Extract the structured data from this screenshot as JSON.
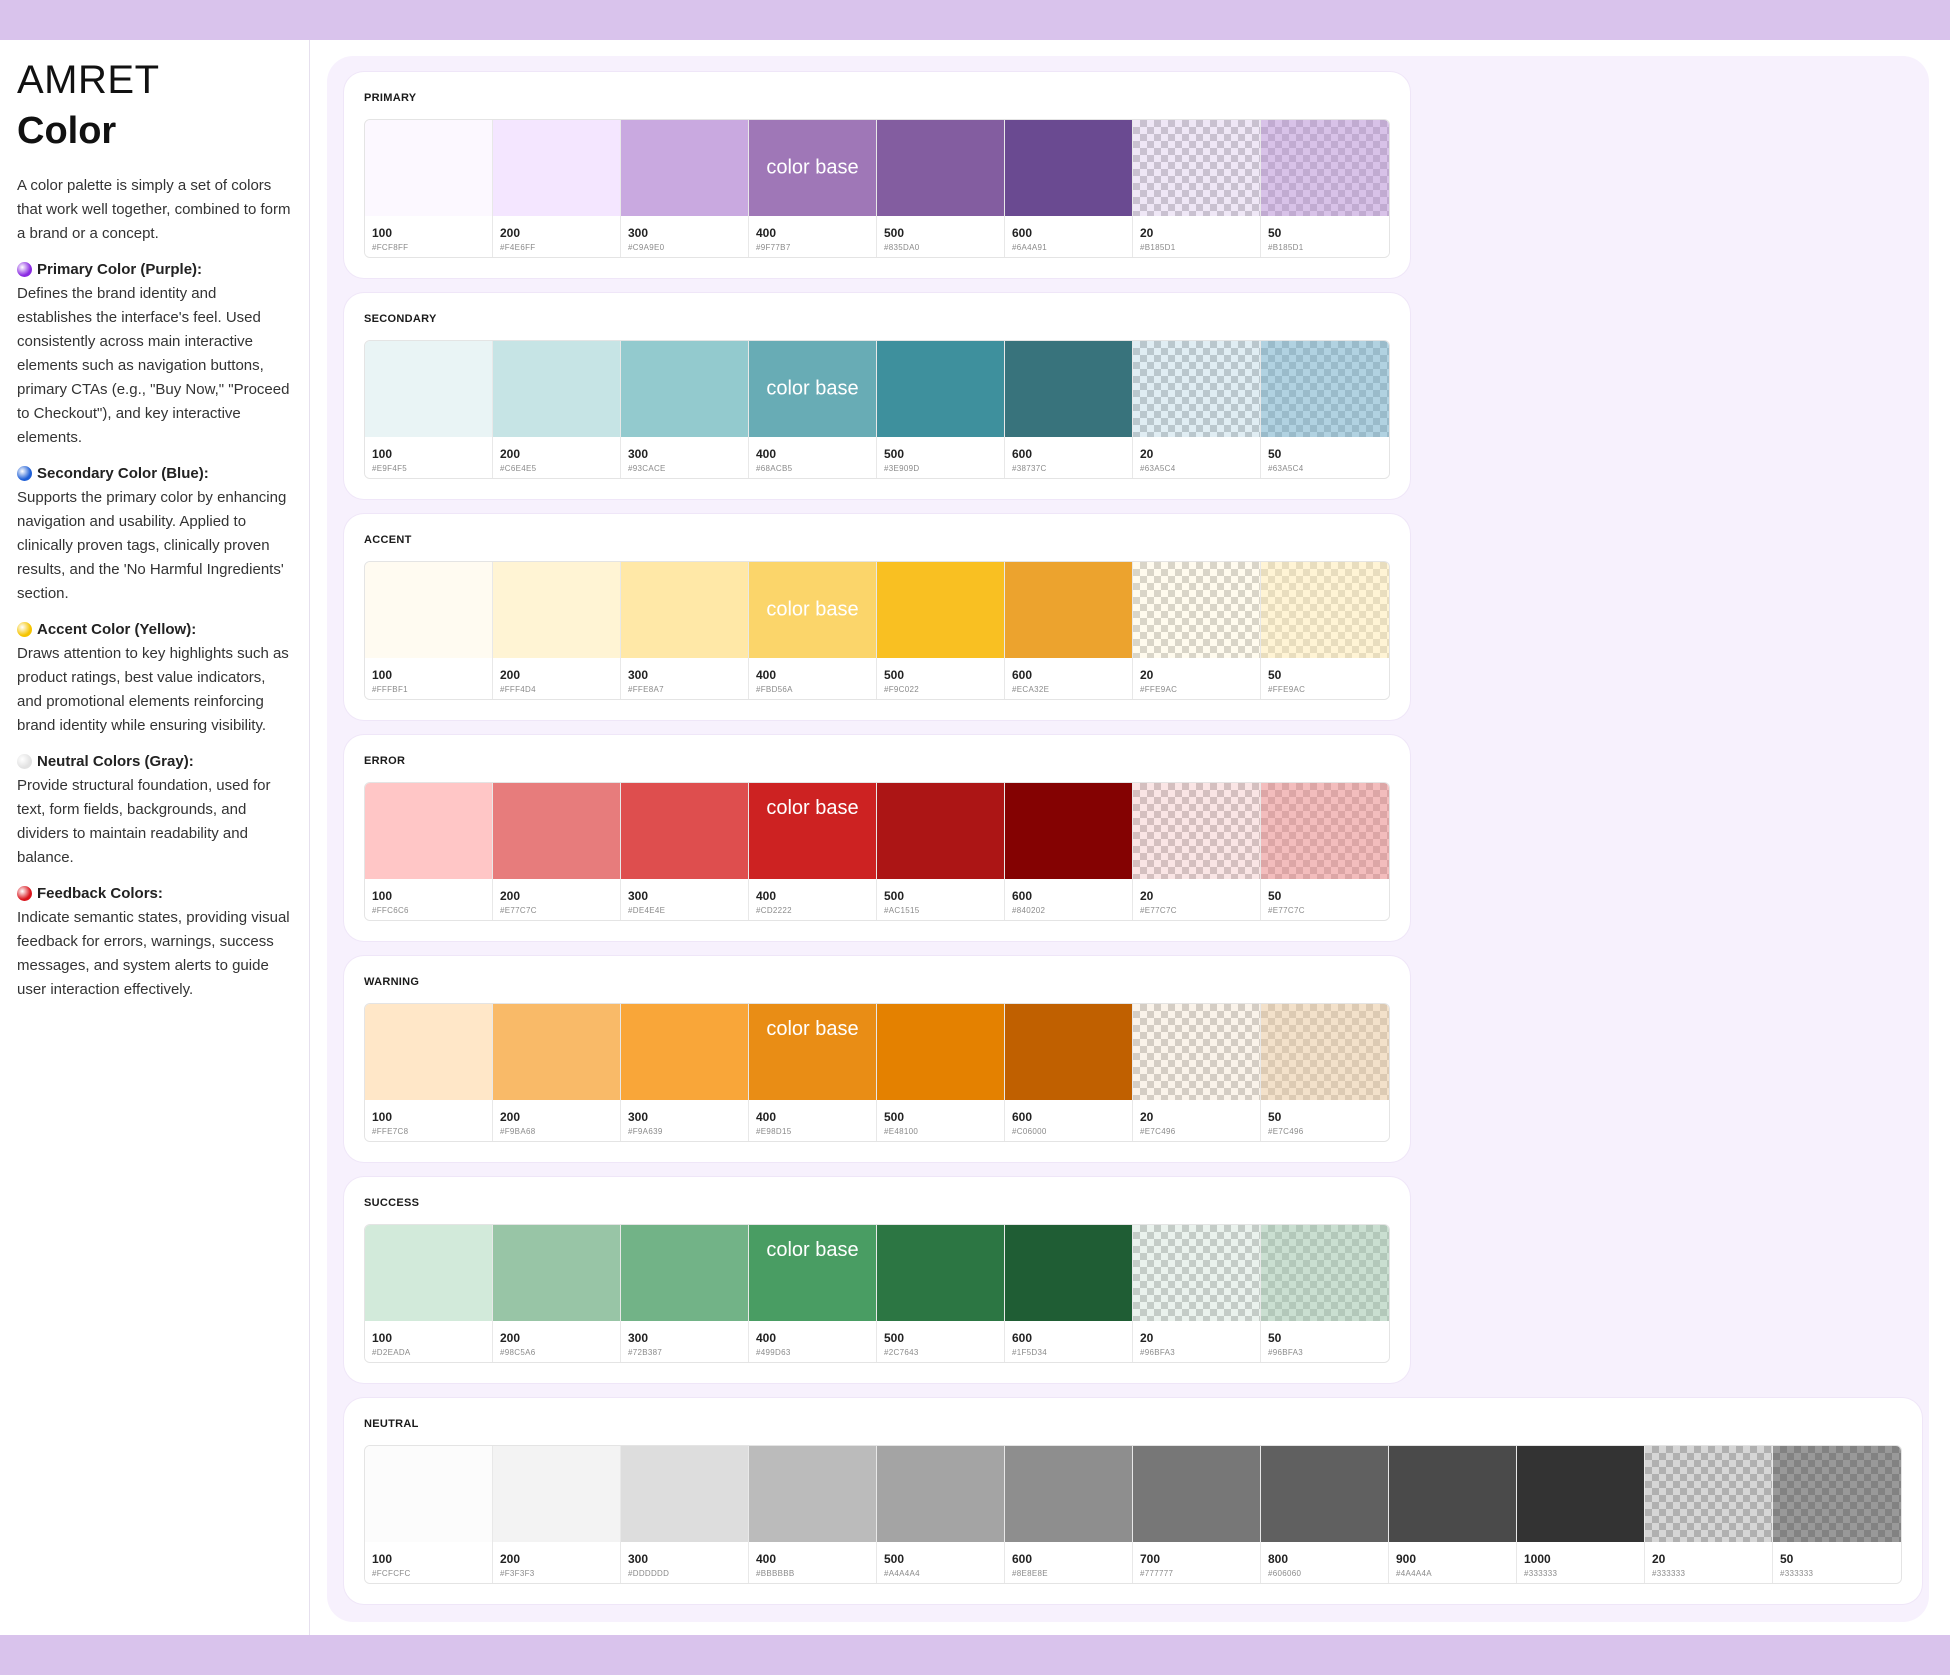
{
  "sidebar": {
    "brand": "AMRET",
    "title": "Color",
    "intro": "A color palette is simply a set of colors that work well together, combined to form a brand or a concept.",
    "sections": [
      {
        "heading": "Primary Color (Purple):",
        "dot": "#8a2be2",
        "body": "Defines the brand identity and establishes the interface's feel. Used consistently across main interactive elements such as navigation buttons, primary CTAs (e.g., \"Buy Now,\" \"Proceed to Checkout\"), and key interactive elements."
      },
      {
        "heading": "Secondary Color (Blue):",
        "dot": "#1f5fd6",
        "body": "Supports the primary color by enhancing navigation and usability. Applied to clinically proven tags, clinically proven results, and the 'No Harmful Ingredients' section."
      },
      {
        "heading": "Accent Color (Yellow):",
        "dot": "#f5c400",
        "body": "Draws attention to key highlights such as product ratings, best value indicators, and promotional elements reinforcing brand identity while ensuring visibility."
      },
      {
        "heading": "Neutral Colors (Gray):",
        "dot": "#e2e2e2",
        "body": "Provide structural foundation, used for text, form fields, backgrounds, and dividers to maintain readability and balance."
      },
      {
        "heading": "Feedback Colors:",
        "dot": "#d9141c",
        "body": "Indicate semantic states, providing visual feedback for errors, warnings, success messages, and system alerts to guide user interaction effectively."
      }
    ]
  },
  "palettes": [
    {
      "label": "PRIMARY",
      "base_text": "color base",
      "base_index": 3,
      "base_pos": "mid",
      "swatches": [
        {
          "step": "100",
          "hex": "#FCF8FF",
          "color": "#FCF8FF"
        },
        {
          "step": "200",
          "hex": "#F4E6FF",
          "color": "#F4E6FF"
        },
        {
          "step": "300",
          "hex": "#C9A9E0",
          "color": "#C9A9E0"
        },
        {
          "step": "400",
          "hex": "#9F77B7",
          "color": "#9F77B7"
        },
        {
          "step": "500",
          "hex": "#835DA0",
          "color": "#835DA0"
        },
        {
          "step": "600",
          "hex": "#6A4A91",
          "color": "#6A4A91"
        },
        {
          "step": "20",
          "hex": "#B185D1",
          "color": "#B185D1",
          "alpha": 0.2
        },
        {
          "step": "50",
          "hex": "#B185D1",
          "color": "#B185D1",
          "alpha": 0.5
        }
      ]
    },
    {
      "label": "SECONDARY",
      "base_text": "color base",
      "base_index": 3,
      "base_pos": "mid",
      "swatches": [
        {
          "step": "100",
          "hex": "#E9F4F5",
          "color": "#E9F4F5"
        },
        {
          "step": "200",
          "hex": "#C6E4E5",
          "color": "#C6E4E5"
        },
        {
          "step": "300",
          "hex": "#93CACE",
          "color": "#93CACE"
        },
        {
          "step": "400",
          "hex": "#68ACB5",
          "color": "#68ACB5"
        },
        {
          "step": "500",
          "hex": "#3E909D",
          "color": "#3E909D"
        },
        {
          "step": "600",
          "hex": "#38737C",
          "color": "#38737C"
        },
        {
          "step": "20",
          "hex": "#63A5C4",
          "color": "#63A5C4",
          "alpha": 0.2
        },
        {
          "step": "50",
          "hex": "#63A5C4",
          "color": "#63A5C4",
          "alpha": 0.5
        }
      ]
    },
    {
      "label": "ACCENT",
      "base_text": "color base",
      "base_index": 3,
      "base_pos": "mid",
      "swatches": [
        {
          "step": "100",
          "hex": "#FFFBF1",
          "color": "#FFFBF1"
        },
        {
          "step": "200",
          "hex": "#FFF4D4",
          "color": "#FFF4D4"
        },
        {
          "step": "300",
          "hex": "#FFE8A7",
          "color": "#FFE8A7"
        },
        {
          "step": "400",
          "hex": "#FBD56A",
          "color": "#FBD56A"
        },
        {
          "step": "500",
          "hex": "#F9C022",
          "color": "#F9C022"
        },
        {
          "step": "600",
          "hex": "#ECA32E",
          "color": "#ECA32E"
        },
        {
          "step": "20",
          "hex": "#FFE9AC",
          "color": "#FFE9AC",
          "alpha": 0.2
        },
        {
          "step": "50",
          "hex": "#FFE9AC",
          "color": "#FFE9AC",
          "alpha": 0.5
        }
      ]
    },
    {
      "label": "ERROR",
      "base_text": "color base",
      "base_index": 3,
      "base_pos": "top",
      "swatches": [
        {
          "step": "100",
          "hex": "#FFC6C6",
          "color": "#FFC6C6"
        },
        {
          "step": "200",
          "hex": "#E77C7C",
          "color": "#E77C7C"
        },
        {
          "step": "300",
          "hex": "#DE4E4E",
          "color": "#DE4E4E"
        },
        {
          "step": "400",
          "hex": "#CD2222",
          "color": "#CD2222"
        },
        {
          "step": "500",
          "hex": "#AC1515",
          "color": "#AC1515"
        },
        {
          "step": "600",
          "hex": "#840202",
          "color": "#840202"
        },
        {
          "step": "20",
          "hex": "#E77C7C",
          "color": "#E77C7C",
          "alpha": 0.2
        },
        {
          "step": "50",
          "hex": "#E77C7C",
          "color": "#E77C7C",
          "alpha": 0.5
        }
      ]
    },
    {
      "label": "WARNING",
      "base_text": "color base",
      "base_index": 3,
      "base_pos": "top",
      "swatches": [
        {
          "step": "100",
          "hex": "#FFE7C8",
          "color": "#FFE7C8"
        },
        {
          "step": "200",
          "hex": "#F9BA68",
          "color": "#F9BA68"
        },
        {
          "step": "300",
          "hex": "#F9A639",
          "color": "#F9A639"
        },
        {
          "step": "400",
          "hex": "#E98D15",
          "color": "#E98D15"
        },
        {
          "step": "500",
          "hex": "#E48100",
          "color": "#E48100"
        },
        {
          "step": "600",
          "hex": "#C06000",
          "color": "#C06000"
        },
        {
          "step": "20",
          "hex": "#E7C496",
          "color": "#E7C496",
          "alpha": 0.2
        },
        {
          "step": "50",
          "hex": "#E7C496",
          "color": "#E7C496",
          "alpha": 0.5
        }
      ]
    },
    {
      "label": "SUCCESS",
      "base_text": "color base",
      "base_index": 3,
      "base_pos": "top",
      "swatches": [
        {
          "step": "100",
          "hex": "#D2EADA",
          "color": "#D2EADA"
        },
        {
          "step": "200",
          "hex": "#98C5A6",
          "color": "#98C5A6"
        },
        {
          "step": "300",
          "hex": "#72B387",
          "color": "#72B387"
        },
        {
          "step": "400",
          "hex": "#499D63",
          "color": "#499D63"
        },
        {
          "step": "500",
          "hex": "#2C7643",
          "color": "#2C7643"
        },
        {
          "step": "600",
          "hex": "#1F5D34",
          "color": "#1F5D34"
        },
        {
          "step": "20",
          "hex": "#96BFA3",
          "color": "#96BFA3",
          "alpha": 0.2
        },
        {
          "step": "50",
          "hex": "#96BFA3",
          "color": "#96BFA3",
          "alpha": 0.5
        }
      ]
    },
    {
      "label": "NEUTRAL",
      "base_text": "",
      "base_index": -1,
      "base_pos": "mid",
      "swatches": [
        {
          "step": "100",
          "hex": "#FCFCFC",
          "color": "#FCFCFC"
        },
        {
          "step": "200",
          "hex": "#F3F3F3",
          "color": "#F3F3F3"
        },
        {
          "step": "300",
          "hex": "#DDDDDD",
          "color": "#DDDDDD"
        },
        {
          "step": "400",
          "hex": "#BBBBBB",
          "color": "#BBBBBB"
        },
        {
          "step": "500",
          "hex": "#A4A4A4",
          "color": "#A4A4A4"
        },
        {
          "step": "600",
          "hex": "#8E8E8E",
          "color": "#8E8E8E"
        },
        {
          "step": "700",
          "hex": "#777777",
          "color": "#777777"
        },
        {
          "step": "800",
          "hex": "#606060",
          "color": "#606060"
        },
        {
          "step": "900",
          "hex": "#4A4A4A",
          "color": "#4A4A4A"
        },
        {
          "step": "1000",
          "hex": "#333333",
          "color": "#333333"
        },
        {
          "step": "20",
          "hex": "#333333",
          "color": "#333333",
          "alpha": 0.2
        },
        {
          "step": "50",
          "hex": "#333333",
          "color": "#333333",
          "alpha": 0.5
        }
      ]
    }
  ]
}
